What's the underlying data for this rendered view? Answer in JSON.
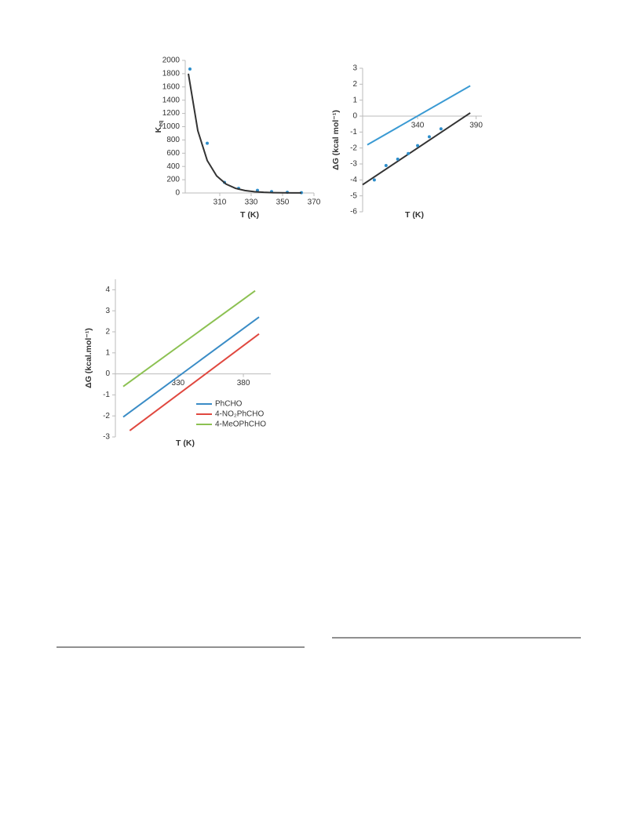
{
  "chart_data": [
    {
      "type": "scatter",
      "ylabel": "K",
      "ylabel_sub": "eq",
      "xlabel": "T (K)",
      "xlim": [
        288,
        370
      ],
      "xticks": [
        310,
        330,
        350,
        370
      ],
      "ylim": [
        0,
        2000
      ],
      "yticks": [
        0,
        200,
        400,
        600,
        800,
        1000,
        1200,
        1400,
        1600,
        1800,
        2000
      ],
      "series": [
        {
          "mode": "markers",
          "color": "#2e8ecb",
          "x": [
            291,
            302,
            313,
            322,
            334,
            343,
            353,
            362
          ],
          "values": [
            1870,
            750,
            160,
            70,
            40,
            20,
            10,
            5
          ]
        },
        {
          "mode": "line",
          "color": "#333333",
          "x": [
            290,
            296,
            302,
            308,
            314,
            320,
            326,
            332,
            338,
            344,
            350,
            356,
            362
          ],
          "values": [
            1800,
            940,
            490,
            257,
            134,
            70,
            37,
            19,
            10,
            5,
            3,
            1,
            1
          ]
        }
      ]
    },
    {
      "type": "scatter",
      "ylabel": "ΔG (kcal mol⁻¹)",
      "xlabel": "T (K)",
      "xlim": [
        293,
        395
      ],
      "xticks": [
        340,
        390
      ],
      "ylim": [
        -6,
        3
      ],
      "yticks": [
        -6,
        -5,
        -4,
        -3,
        -2,
        -1,
        0,
        1,
        2,
        3
      ],
      "series": [
        {
          "mode": "line",
          "color": "#3a9ad3",
          "x": [
            297,
            385
          ],
          "values": [
            -1.8,
            1.9
          ]
        },
        {
          "mode": "line",
          "color": "#333333",
          "x": [
            293,
            385
          ],
          "values": [
            -4.3,
            0.2
          ]
        },
        {
          "mode": "markers",
          "color": "#2e8ecb",
          "x": [
            303,
            313,
            323,
            332,
            340,
            350,
            360
          ],
          "values": [
            -4,
            -3.1,
            -2.7,
            -2.35,
            -1.85,
            -1.3,
            -0.8
          ]
        }
      ]
    },
    {
      "type": "line",
      "ylabel": "ΔG (kcal.mol⁻¹)",
      "xlabel": "T (K)",
      "legend": "lower right",
      "xlim": [
        282,
        401
      ],
      "xticks": [
        330,
        380
      ],
      "ylim": [
        -3,
        4.5
      ],
      "yticks": [
        -3,
        -2,
        -1,
        0,
        1,
        2,
        3,
        4
      ],
      "series": [
        {
          "name": "PhCHO",
          "mode": "line",
          "color": "#3a8cc6",
          "x": [
            288,
            392
          ],
          "values": [
            -2.05,
            2.7
          ]
        },
        {
          "name": "4-NO₂PhCHO",
          "mode": "line",
          "color": "#e0483f",
          "x": [
            293,
            392
          ],
          "values": [
            -2.7,
            1.9
          ]
        },
        {
          "name": "4-MeOPhCHO",
          "mode": "line",
          "color": "#8cc152",
          "x": [
            288,
            389
          ],
          "values": [
            -0.6,
            3.95
          ]
        }
      ]
    }
  ]
}
